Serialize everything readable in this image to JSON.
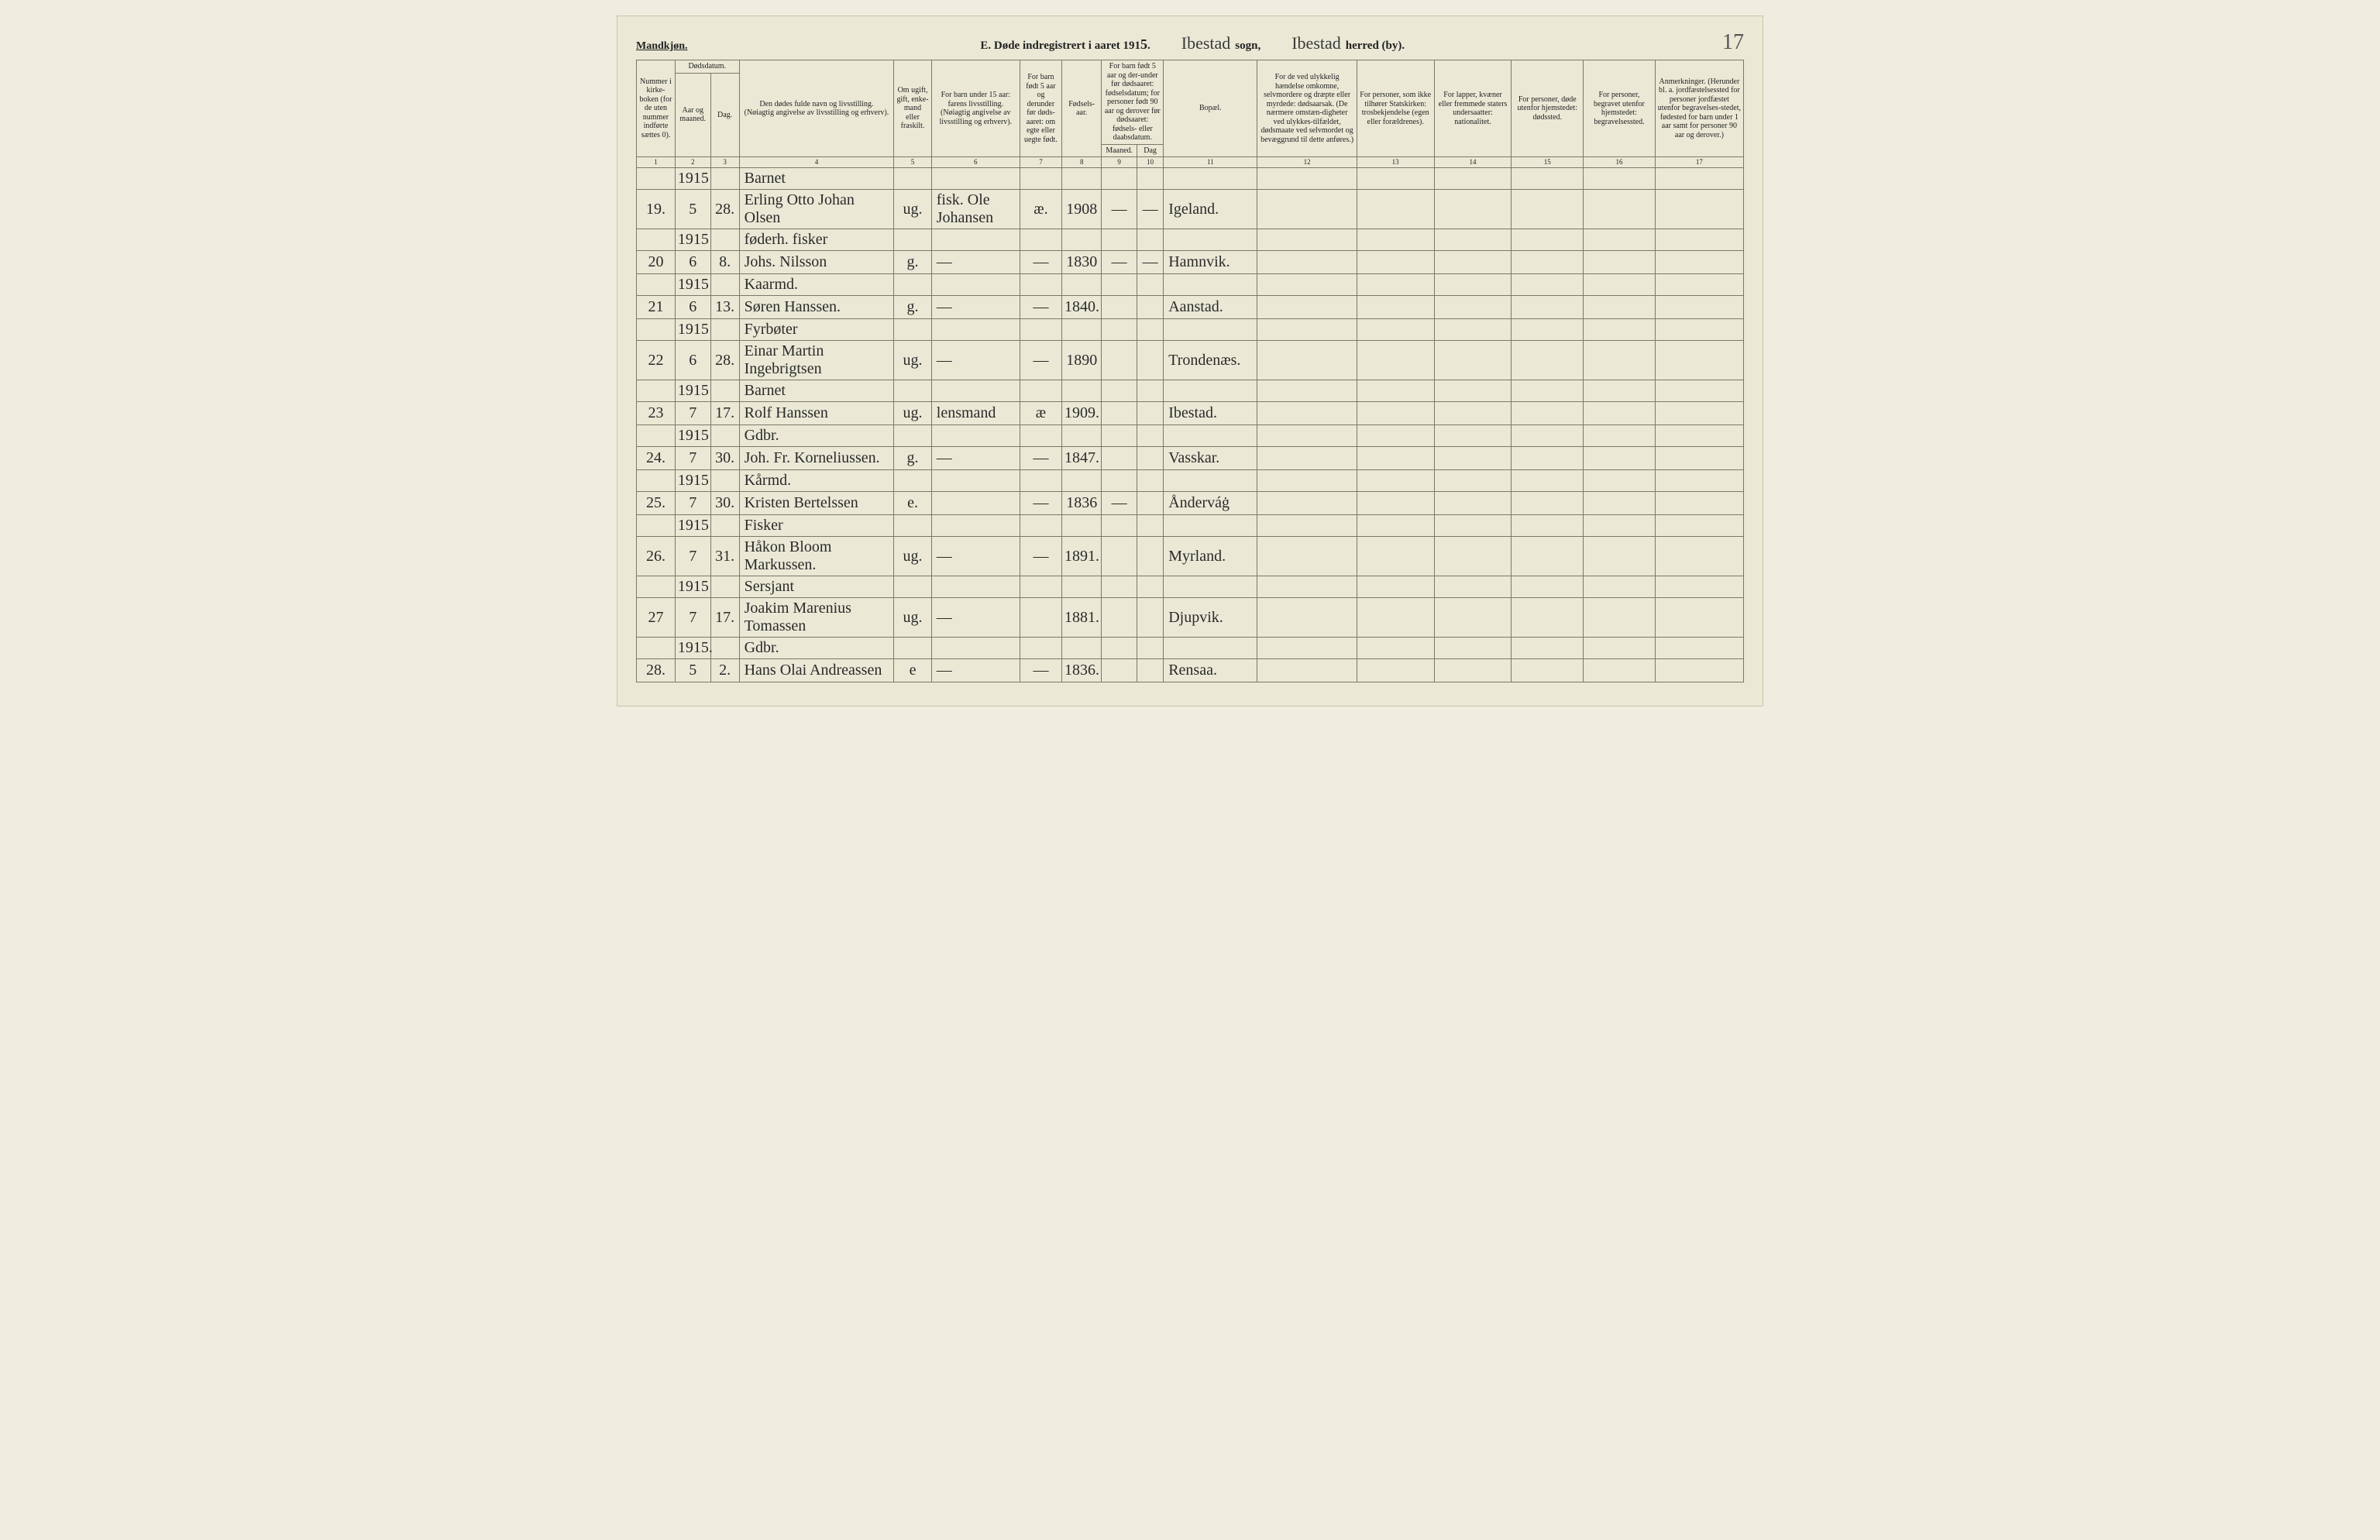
{
  "header": {
    "gender": "Mandkjøn.",
    "title_prefix": "E.  Døde indregistrert i aaret 191",
    "year_digit": "5",
    "title_suffix": ".",
    "sogn_value": "Ibestad",
    "sogn_label": "sogn,",
    "herred_value": "Ibestad",
    "herred_label": "herred (by).",
    "page_number": "17"
  },
  "columns": {
    "c1": "Nummer i kirke-boken (for de uten nummer indførte sættes 0).",
    "c2_top": "Dødsdatum.",
    "c2a": "Aar og maaned.",
    "c2b": "Dag.",
    "c4a": "Den dødes fulde navn og livsstilling.",
    "c4b": "(Nøiagtig angivelse av livsstilling og erhverv).",
    "c5": "Om ugift, gift, enke-mand eller fraskilt.",
    "c6a": "For barn under 15 aar:",
    "c6b": "farens livsstilling.",
    "c6c": "(Nøiagtig angivelse av livsstilling og erhverv).",
    "c7": "For barn født 5 aar og derunder før døds-aaret: om egte eller uegte født.",
    "c8": "Fødsels-aar.",
    "c910_top": "For barn født 5 aar og der-under før dødsaaret: fødselsdatum; for personer født 90 aar og derover før dødsaaret: fødsels- eller daabsdatum.",
    "c9": "Maaned.",
    "c10": "Dag",
    "c11": "Bopæl.",
    "c12": "For de ved ulykkelig hændelse omkomne, selvmordere og dræpte eller myrdede: dødsaarsak. (De nærmere omstæn-digheter ved ulykkes-tilfældet, dødsmaate ved selvmordet og bevæggrund til dette anføres.)",
    "c13": "For personer, som ikke tilhører Statskirken: trosbekjendelse (egen eller forældrenes).",
    "c14": "For lapper, kvæner eller fremmede staters undersaatter: nationalitet.",
    "c15": "For personer, døde utenfor hjemstedet: dødssted.",
    "c16": "For personer, begravet utenfor hjemstedet: begravelsessted.",
    "c17": "Anmerkninger. (Herunder bl. a. jordfæstelsessted for personer jordfæstet utenfor begravelses-stedet, fødested for barn under 1 aar samt for personer 90 aar og derover.)"
  },
  "colnums": [
    "1",
    "2",
    "3",
    "4",
    "5",
    "6",
    "7",
    "8",
    "9",
    "10",
    "11",
    "12",
    "13",
    "14",
    "15",
    "16",
    "17"
  ],
  "rows": [
    {
      "occ_year": "1915",
      "occupation": "Barnet",
      "num": "19.",
      "aar": "5",
      "dag": "28.",
      "name": "Erling Otto Johan Olsen",
      "ugift": "ug.",
      "faren": "fisk. Ole Johansen",
      "egte": "æ.",
      "fodsel": "1908",
      "maaned": "—",
      "dag2": "—",
      "bopel": "Igeland."
    },
    {
      "occ_year": "1915",
      "occupation": "føderh. fisker",
      "num": "20",
      "aar": "6",
      "dag": "8.",
      "name": "Johs. Nilsson",
      "ugift": "g.",
      "faren": "—",
      "egte": "—",
      "fodsel": "1830",
      "maaned": "—",
      "dag2": "—",
      "bopel": "Hamnvik."
    },
    {
      "occ_year": "1915",
      "occupation": "Kaarmd.",
      "num": "21",
      "aar": "6",
      "dag": "13.",
      "name": "Søren Hanssen.",
      "ugift": "g.",
      "faren": "—",
      "egte": "—",
      "fodsel": "1840.",
      "maaned": "",
      "dag2": "",
      "bopel": "Aanstad."
    },
    {
      "occ_year": "1915",
      "occupation": "Fyrbøter",
      "num": "22",
      "aar": "6",
      "dag": "28.",
      "name": "Einar Martin Ingebrigtsen",
      "ugift": "ug.",
      "faren": "—",
      "egte": "—",
      "fodsel": "1890",
      "maaned": "",
      "dag2": "",
      "bopel": "Trondenæs."
    },
    {
      "occ_year": "1915",
      "occupation": "Barnet",
      "num": "23",
      "aar": "7",
      "dag": "17.",
      "name": "Rolf Hanssen",
      "ugift": "ug.",
      "faren": "lensmand",
      "egte": "æ",
      "fodsel": "1909.",
      "maaned": "",
      "dag2": "",
      "bopel": "Ibestad."
    },
    {
      "occ_year": "1915",
      "occupation": "Gdbr.",
      "num": "24.",
      "aar": "7",
      "dag": "30.",
      "name": "Joh. Fr. Korneliussen.",
      "ugift": "g.",
      "faren": "—",
      "egte": "—",
      "fodsel": "1847.",
      "maaned": "",
      "dag2": "",
      "bopel": "Vasskar."
    },
    {
      "occ_year": "1915",
      "occupation": "Kårmd.",
      "num": "25.",
      "aar": "7",
      "dag": "30.",
      "name": "Kristen Bertelssen",
      "ugift": "e.",
      "faren": "",
      "egte": "—",
      "fodsel": "1836",
      "maaned": "—",
      "dag2": "",
      "bopel": "Ånderváġ"
    },
    {
      "occ_year": "1915",
      "occupation": "Fisker",
      "num": "26.",
      "aar": "7",
      "dag": "31.",
      "name": "Håkon Bloom Markussen.",
      "ugift": "ug.",
      "faren": "—",
      "egte": "—",
      "fodsel": "1891.",
      "maaned": "",
      "dag2": "",
      "bopel": "Myrland."
    },
    {
      "occ_year": "1915",
      "occupation": "Sersjant",
      "num": "27",
      "aar": "7",
      "dag": "17.",
      "name": "Joakim Marenius Tomassen",
      "ugift": "ug.",
      "faren": "—",
      "egte": "",
      "fodsel": "1881.",
      "maaned": "",
      "dag2": "",
      "bopel": "Djupvik."
    },
    {
      "occ_year": "1915.",
      "occupation": "Gdbr.",
      "num": "28.",
      "aar": "5",
      "dag": "2.",
      "name": "Hans Olai Andreassen",
      "ugift": "e",
      "faren": "—",
      "egte": "—",
      "fodsel": "1836.",
      "maaned": "",
      "dag2": "",
      "bopel": "Rensaa."
    }
  ]
}
